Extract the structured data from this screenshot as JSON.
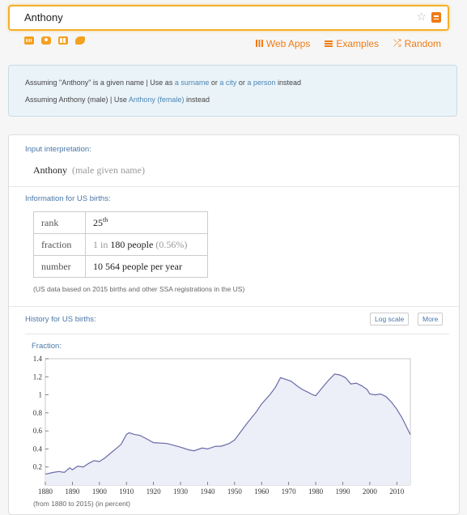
{
  "search": {
    "value": "Anthony"
  },
  "icons": {
    "star": "star-icon",
    "equals": "equals-icon"
  },
  "toolbar_links": {
    "web_apps": "Web Apps",
    "examples": "Examples",
    "random": "Random"
  },
  "assumptions": {
    "l1_pre": "Assuming \"Anthony\" is a given name | Use as ",
    "l1_link1": "a surname",
    "l1_or1": " or ",
    "l1_link2": "a city",
    "l1_or2": " or ",
    "l1_link3": "a person",
    "l1_post": " instead",
    "l2_pre": "Assuming Anthony (male) | Use ",
    "l2_link": "Anthony (female)",
    "l2_post": " instead"
  },
  "interpretation": {
    "title": "Input interpretation:",
    "name": "Anthony",
    "sub": "(male given name)"
  },
  "births": {
    "title": "Information for US births:",
    "rank_label": "rank",
    "rank_value": "25",
    "rank_suffix": "th",
    "fraction_label": "fraction",
    "fraction_pre": "1 in",
    "fraction_value": "180 people",
    "fraction_pct": "(0.56%)",
    "number_label": "number",
    "number_value": "10 564",
    "number_unit": "people per year",
    "note": "(US data based on 2015 births and other SSA registrations in the US)"
  },
  "history": {
    "title": "History for US births:",
    "log_button": "Log scale",
    "more_button": "More",
    "fraction_label": "Fraction:",
    "range_note": "(from 1880 to 2015)  (in percent)"
  },
  "colors": {
    "accent": "#f07c14",
    "link": "#4a77a6",
    "line": "#6a6aa8",
    "fill": "#eceef8"
  },
  "chart_data": {
    "type": "area",
    "xlim": [
      1880,
      2015
    ],
    "ylim": [
      0,
      1.4
    ],
    "x_ticks": [
      1880,
      1890,
      1900,
      1910,
      1920,
      1930,
      1940,
      1950,
      1960,
      1970,
      1980,
      1990,
      2000,
      2010
    ],
    "y_ticks": [
      0.2,
      0.4,
      0.6,
      0.8,
      1,
      1.2,
      1.4
    ],
    "series": [
      {
        "x": [
          1880,
          1883,
          1885,
          1887,
          1889,
          1890,
          1892,
          1894,
          1896,
          1898,
          1900,
          1902,
          1904,
          1906,
          1908,
          1910,
          1911,
          1913,
          1915,
          1917,
          1920,
          1925,
          1930,
          1933,
          1935,
          1938,
          1940,
          1943,
          1945,
          1948,
          1950,
          1952,
          1955,
          1958,
          1960,
          1963,
          1965,
          1967,
          1969,
          1971,
          1973,
          1975,
          1977,
          1979,
          1980,
          1983,
          1985,
          1987,
          1989,
          1991,
          1993,
          1995,
          1997,
          1999,
          2000,
          2002,
          2004,
          2006,
          2008,
          2010,
          2012,
          2015
        ],
        "y": [
          0.12,
          0.14,
          0.15,
          0.14,
          0.19,
          0.17,
          0.21,
          0.2,
          0.24,
          0.27,
          0.26,
          0.3,
          0.35,
          0.4,
          0.45,
          0.56,
          0.58,
          0.56,
          0.55,
          0.52,
          0.47,
          0.46,
          0.42,
          0.39,
          0.38,
          0.41,
          0.4,
          0.43,
          0.43,
          0.46,
          0.5,
          0.58,
          0.7,
          0.81,
          0.9,
          1.0,
          1.08,
          1.19,
          1.17,
          1.15,
          1.1,
          1.06,
          1.03,
          1.0,
          0.99,
          1.1,
          1.17,
          1.23,
          1.22,
          1.19,
          1.12,
          1.13,
          1.1,
          1.06,
          1.01,
          1.0,
          1.01,
          0.98,
          0.92,
          0.84,
          0.74,
          0.56
        ]
      }
    ]
  }
}
